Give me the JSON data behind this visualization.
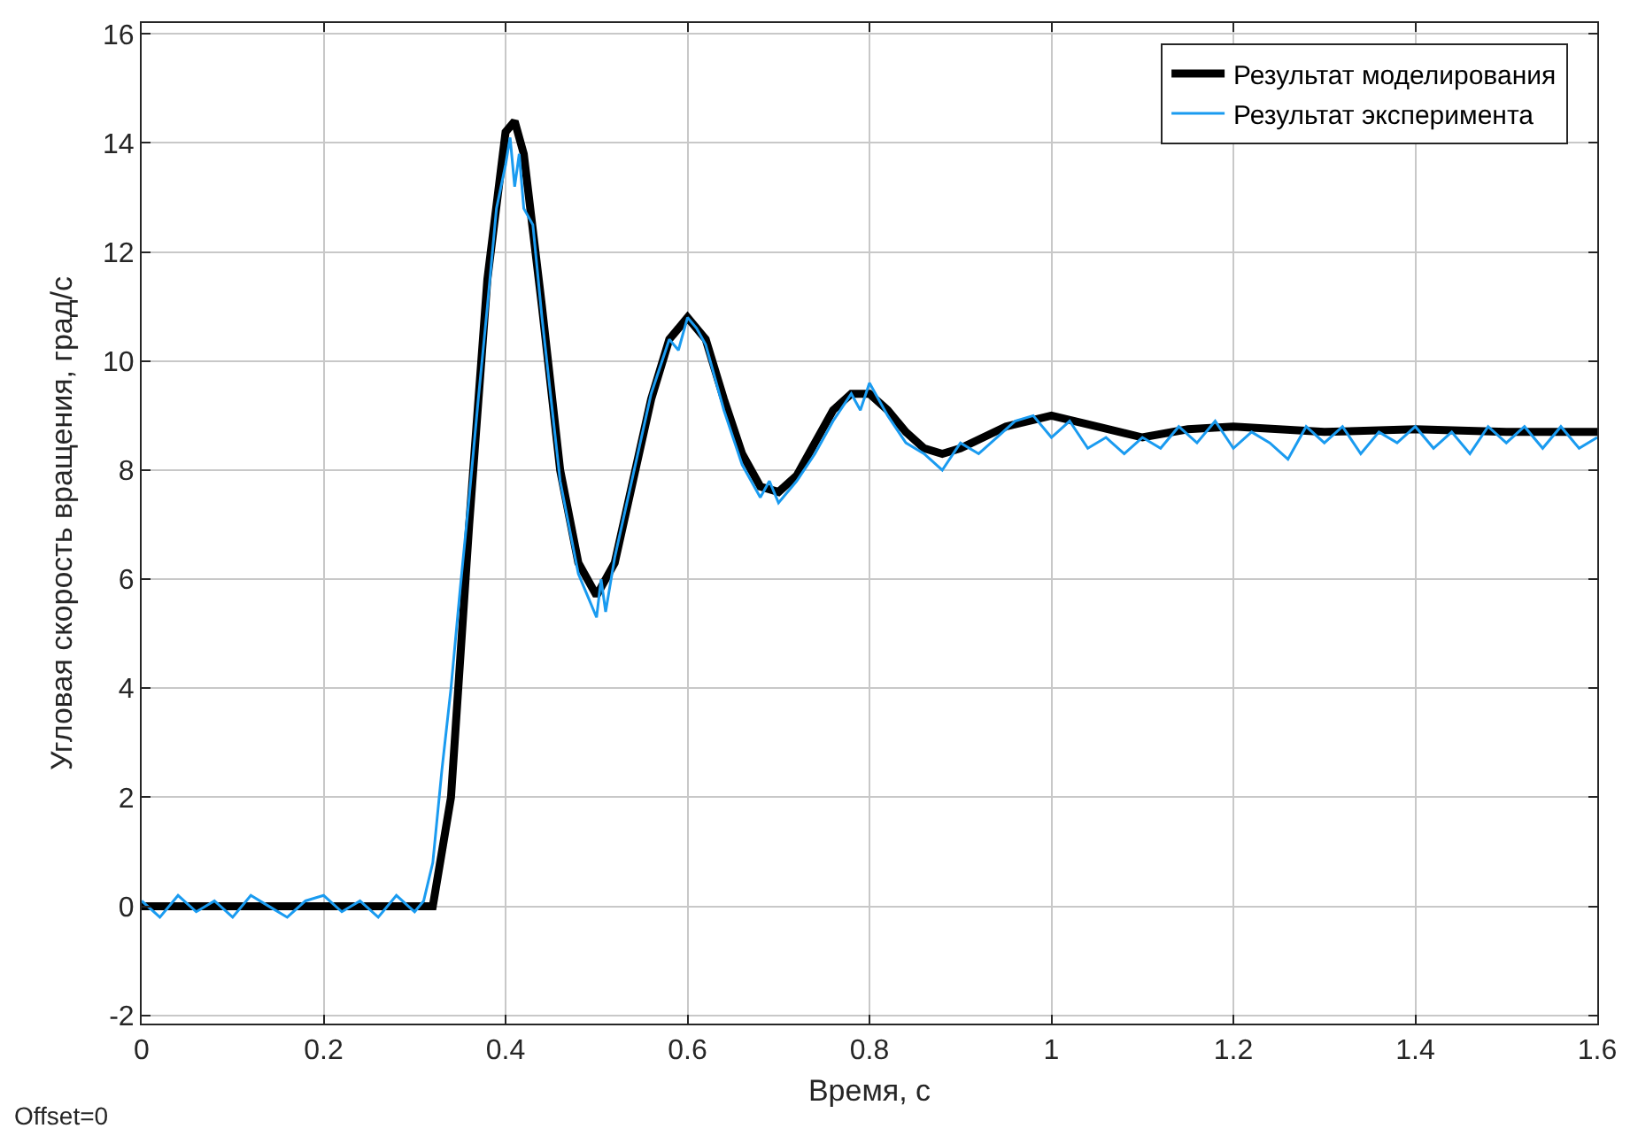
{
  "chart_data": {
    "type": "line",
    "xlabel": "Время, с",
    "ylabel": "Угловая скорость вращения, град/с",
    "annotations": [
      "Offset=0"
    ],
    "xlim": [
      0,
      1.6
    ],
    "xticks": [
      0,
      0.2,
      0.4,
      0.6,
      0.8,
      1,
      1.2,
      1.4,
      1.6
    ],
    "ylim": [
      -2.15,
      16.2
    ],
    "yticks": [
      -2,
      0,
      2,
      4,
      6,
      8,
      10,
      12,
      14,
      16
    ],
    "grid": true,
    "legend": "top right",
    "line_style": "solid",
    "marker": "none",
    "series": [
      {
        "name": "Результат моделирования",
        "color": "#000000",
        "x": [
          0,
          0.32,
          0.34,
          0.36,
          0.38,
          0.4,
          0.41,
          0.42,
          0.44,
          0.46,
          0.48,
          0.5,
          0.52,
          0.54,
          0.56,
          0.58,
          0.6,
          0.62,
          0.64,
          0.66,
          0.68,
          0.7,
          0.72,
          0.74,
          0.76,
          0.78,
          0.8,
          0.82,
          0.84,
          0.86,
          0.88,
          0.9,
          0.95,
          1.0,
          1.05,
          1.1,
          1.15,
          1.2,
          1.3,
          1.4,
          1.5,
          1.6
        ],
        "values": [
          0,
          0,
          2,
          7,
          11.5,
          14.2,
          14.4,
          13.8,
          11,
          8,
          6.3,
          5.7,
          6.3,
          7.8,
          9.3,
          10.4,
          10.8,
          10.4,
          9.3,
          8.3,
          7.7,
          7.6,
          7.9,
          8.5,
          9.1,
          9.4,
          9.4,
          9.1,
          8.7,
          8.4,
          8.3,
          8.4,
          8.8,
          9.0,
          8.8,
          8.6,
          8.75,
          8.8,
          8.7,
          8.75,
          8.7,
          8.7
        ]
      },
      {
        "name": "Результат эксперимента",
        "color": "#1a9bf0",
        "x": [
          0,
          0.02,
          0.04,
          0.06,
          0.08,
          0.1,
          0.12,
          0.14,
          0.16,
          0.18,
          0.2,
          0.22,
          0.24,
          0.26,
          0.28,
          0.3,
          0.31,
          0.32,
          0.33,
          0.34,
          0.35,
          0.36,
          0.37,
          0.38,
          0.39,
          0.4,
          0.405,
          0.41,
          0.415,
          0.42,
          0.43,
          0.44,
          0.46,
          0.48,
          0.49,
          0.5,
          0.505,
          0.51,
          0.52,
          0.54,
          0.56,
          0.58,
          0.59,
          0.6,
          0.61,
          0.62,
          0.64,
          0.66,
          0.68,
          0.69,
          0.7,
          0.72,
          0.74,
          0.76,
          0.78,
          0.79,
          0.8,
          0.82,
          0.84,
          0.86,
          0.88,
          0.9,
          0.92,
          0.94,
          0.96,
          0.98,
          1.0,
          1.02,
          1.04,
          1.06,
          1.08,
          1.1,
          1.12,
          1.14,
          1.16,
          1.18,
          1.2,
          1.22,
          1.24,
          1.26,
          1.28,
          1.3,
          1.32,
          1.34,
          1.36,
          1.38,
          1.4,
          1.42,
          1.44,
          1.46,
          1.48,
          1.5,
          1.52,
          1.54,
          1.56,
          1.58,
          1.6
        ],
        "values": [
          0.1,
          -0.2,
          0.2,
          -0.1,
          0.1,
          -0.2,
          0.2,
          0,
          -0.2,
          0.1,
          0.2,
          -0.1,
          0.1,
          -0.2,
          0.2,
          -0.1,
          0.1,
          0.8,
          2.5,
          4,
          5.8,
          7.5,
          9.3,
          11,
          12.8,
          13.6,
          14.1,
          13.2,
          13.8,
          12.8,
          12.5,
          10.8,
          7.8,
          6.1,
          5.7,
          5.3,
          6,
          5.4,
          6.4,
          7.9,
          9.4,
          10.4,
          10.2,
          10.8,
          10.6,
          10.3,
          9.1,
          8.1,
          7.5,
          7.8,
          7.4,
          7.8,
          8.3,
          8.9,
          9.4,
          9.1,
          9.6,
          9.0,
          8.5,
          8.3,
          8.0,
          8.5,
          8.3,
          8.6,
          8.9,
          9.0,
          8.6,
          8.9,
          8.4,
          8.6,
          8.3,
          8.6,
          8.4,
          8.8,
          8.5,
          8.9,
          8.4,
          8.7,
          8.5,
          8.2,
          8.8,
          8.5,
          8.8,
          8.3,
          8.7,
          8.5,
          8.8,
          8.4,
          8.7,
          8.3,
          8.8,
          8.5,
          8.8,
          8.4,
          8.8,
          8.4,
          8.6
        ]
      }
    ]
  }
}
